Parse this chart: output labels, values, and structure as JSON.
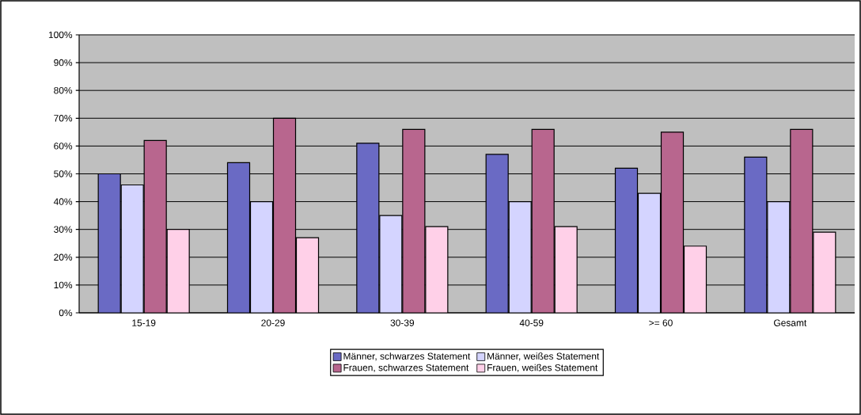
{
  "chart_data": {
    "type": "bar",
    "categories": [
      "15-19",
      "20-29",
      "30-39",
      "40-59",
      ">= 60",
      "Gesamt"
    ],
    "series": [
      {
        "name": "Männer, schwarzes Statement",
        "color": "#6a6ac4",
        "values": [
          50,
          54,
          61,
          57,
          52,
          56
        ]
      },
      {
        "name": "Männer, weißes Statement",
        "color": "#d4d4ff",
        "values": [
          46,
          40,
          35,
          40,
          43,
          40
        ]
      },
      {
        "name": "Frauen, schwarzes Statement",
        "color": "#b8668e",
        "values": [
          62,
          70,
          66,
          66,
          65,
          66
        ]
      },
      {
        "name": "Frauen, weißes Statement",
        "color": "#ffd0e8",
        "values": [
          30,
          27,
          31,
          31,
          24,
          29
        ]
      }
    ],
    "ylim": [
      0,
      100
    ],
    "yticks": [
      {
        "value": 0,
        "label": "0%"
      },
      {
        "value": 10,
        "label": "10%"
      },
      {
        "value": 20,
        "label": "20%"
      },
      {
        "value": 30,
        "label": "30%"
      },
      {
        "value": 40,
        "label": "40%"
      },
      {
        "value": 50,
        "label": "50%"
      },
      {
        "value": 60,
        "label": "60%"
      },
      {
        "value": 70,
        "label": "70%"
      },
      {
        "value": 80,
        "label": "80%"
      },
      {
        "value": 90,
        "label": "90%"
      },
      {
        "value": 100,
        "label": "100%"
      }
    ],
    "grid": "y",
    "legend": "bottom"
  }
}
